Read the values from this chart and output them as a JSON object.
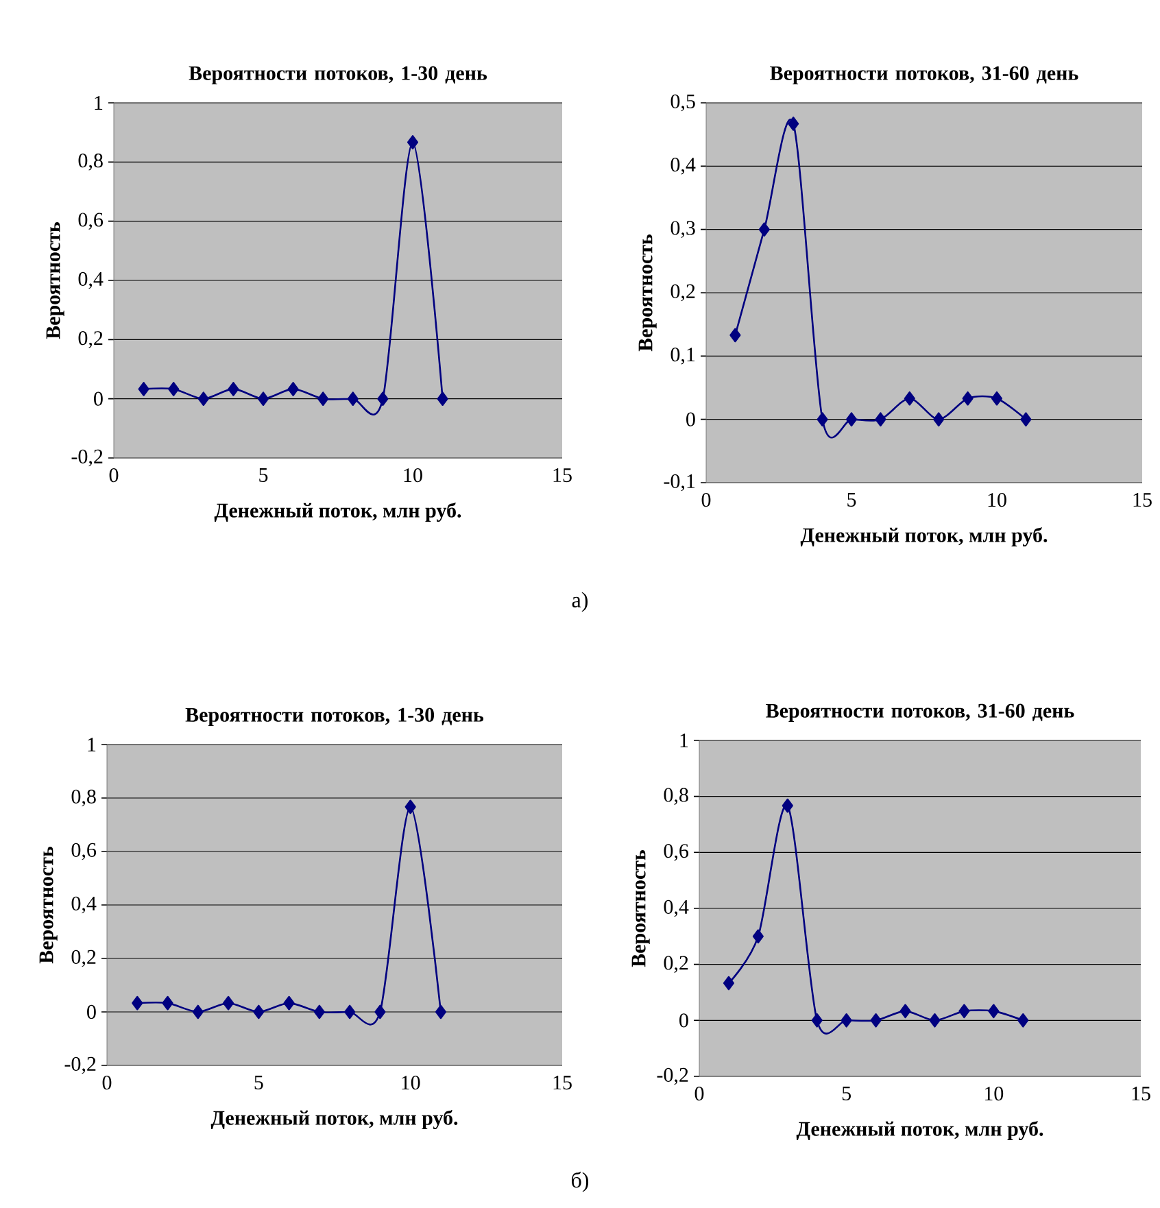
{
  "chart_data": [
    {
      "type": "line",
      "title": "Вероятности потоков, 1-30 день",
      "xlabel": "Денежный поток, млн руб.",
      "ylabel": "Вероятность",
      "x": [
        1,
        2,
        3,
        4,
        5,
        6,
        7,
        8,
        9,
        10,
        11
      ],
      "series": [
        {
          "color": "#000080",
          "values": [
            0.033,
            0.033,
            0,
            0.033,
            0,
            0.033,
            0,
            0,
            0,
            0.867,
            0
          ]
        }
      ],
      "xlim": [
        0,
        15
      ],
      "xticks": [
        0,
        5,
        10,
        15
      ],
      "ylim": [
        -0.2,
        1
      ],
      "yticks": [
        {
          "value": -0.2,
          "label": "-0,2"
        },
        0,
        {
          "value": 0.2,
          "label": "0,2"
        },
        {
          "value": 0.4,
          "label": "0,4"
        },
        {
          "value": 0.6,
          "label": "0,6"
        },
        {
          "value": 0.8,
          "label": "0,8"
        },
        1
      ],
      "grid": "y",
      "marker": "diamond",
      "line_style": "solid",
      "annotations": [
        "а)"
      ]
    },
    {
      "type": "line",
      "title": "Вероятности потоков, 31-60 день",
      "xlabel": "Денежный поток, млн руб.",
      "ylabel": "Вероятность",
      "x": [
        1,
        2,
        3,
        4,
        5,
        6,
        7,
        8,
        9,
        10,
        11
      ],
      "series": [
        {
          "color": "#000080",
          "values": [
            0.133,
            0.3,
            0.467,
            0,
            0,
            0,
            0.033,
            0,
            0.033,
            0.033,
            0
          ]
        }
      ],
      "xlim": [
        0,
        15
      ],
      "xticks": [
        0,
        5,
        10,
        15
      ],
      "ylim": [
        -0.1,
        0.5
      ],
      "yticks": [
        {
          "value": -0.1,
          "label": "-0,1"
        },
        0,
        {
          "value": 0.1,
          "label": "0,1"
        },
        {
          "value": 0.2,
          "label": "0,2"
        },
        {
          "value": 0.3,
          "label": "0,3"
        },
        {
          "value": 0.4,
          "label": "0,4"
        },
        {
          "value": 0.5,
          "label": "0,5"
        }
      ],
      "grid": "y",
      "marker": "diamond",
      "line_style": "solid"
    },
    {
      "type": "line",
      "title": "Вероятности потоков, 1-30 день",
      "xlabel": "Денежный поток, млн руб.",
      "ylabel": "Вероятность",
      "x": [
        1,
        2,
        3,
        4,
        5,
        6,
        7,
        8,
        9,
        10,
        11
      ],
      "series": [
        {
          "color": "#000080",
          "values": [
            0.033,
            0.033,
            0,
            0.033,
            0,
            0.033,
            0,
            0,
            0,
            0.767,
            0
          ]
        }
      ],
      "xlim": [
        0,
        15
      ],
      "xticks": [
        0,
        5,
        10,
        15
      ],
      "ylim": [
        -0.2,
        1
      ],
      "yticks": [
        {
          "value": -0.2,
          "label": "-0,2"
        },
        0,
        {
          "value": 0.2,
          "label": "0,2"
        },
        {
          "value": 0.4,
          "label": "0,4"
        },
        {
          "value": 0.6,
          "label": "0,6"
        },
        {
          "value": 0.8,
          "label": "0,8"
        },
        1
      ],
      "grid": "y",
      "marker": "diamond",
      "line_style": "solid",
      "annotations": [
        "б)"
      ]
    },
    {
      "type": "line",
      "title": "Вероятности потоков, 31-60 день",
      "xlabel": "Денежный поток, млн руб.",
      "ylabel": "Вероятность",
      "x": [
        1,
        2,
        3,
        4,
        5,
        6,
        7,
        8,
        9,
        10,
        11
      ],
      "series": [
        {
          "color": "#000080",
          "values": [
            0.133,
            0.3,
            0.767,
            0,
            0,
            0,
            0.033,
            0,
            0.033,
            0.033,
            0
          ]
        }
      ],
      "xlim": [
        0,
        15
      ],
      "xticks": [
        0,
        5,
        10,
        15
      ],
      "ylim": [
        -0.2,
        1
      ],
      "yticks": [
        {
          "value": -0.2,
          "label": "-0,2"
        },
        0,
        {
          "value": 0.2,
          "label": "0,2"
        },
        {
          "value": 0.4,
          "label": "0,4"
        },
        {
          "value": 0.6,
          "label": "0,6"
        },
        {
          "value": 0.8,
          "label": "0,8"
        },
        1
      ],
      "grid": "y",
      "marker": "diamond",
      "line_style": "solid"
    }
  ]
}
